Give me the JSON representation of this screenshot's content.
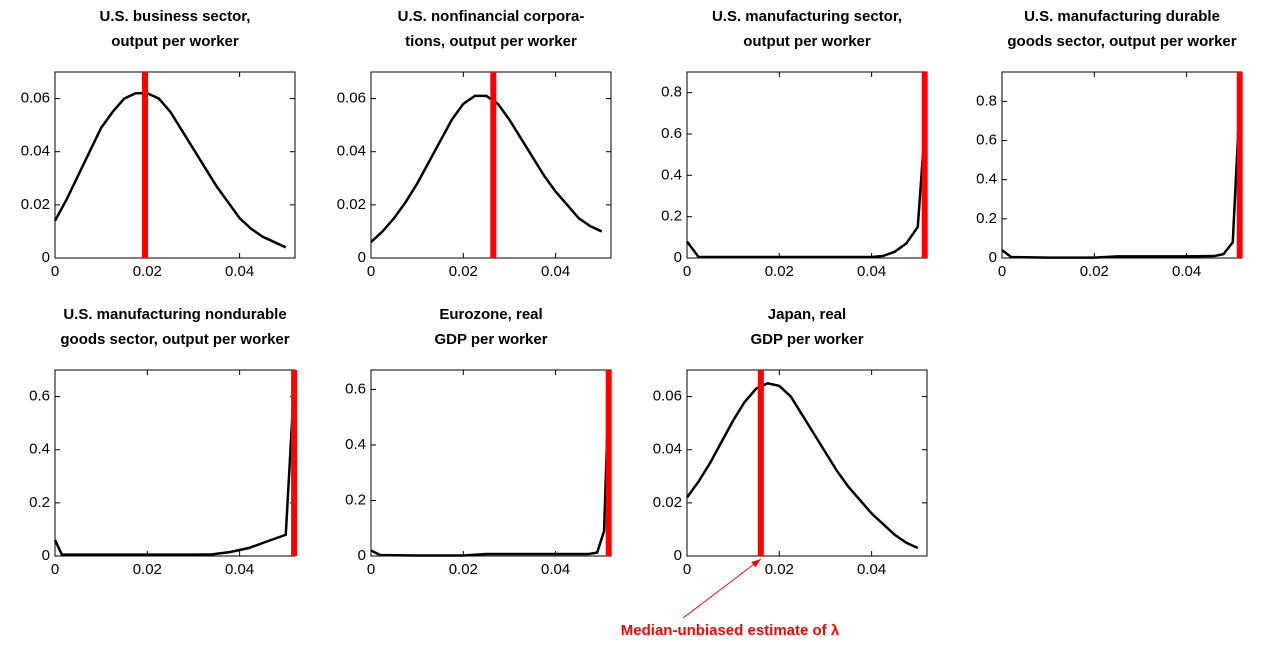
{
  "chart_data": [
    {
      "type": "line",
      "title": [
        "U.S. business sector,",
        "output per worker"
      ],
      "x": [
        0,
        0.0025,
        0.005,
        0.0075,
        0.01,
        0.0125,
        0.015,
        0.0175,
        0.02,
        0.0225,
        0.025,
        0.0275,
        0.03,
        0.0325,
        0.035,
        0.0375,
        0.04,
        0.0425,
        0.045,
        0.0475,
        0.05
      ],
      "values": [
        0.014,
        0.022,
        0.031,
        0.04,
        0.049,
        0.055,
        0.06,
        0.062,
        0.062,
        0.06,
        0.055,
        0.048,
        0.041,
        0.034,
        0.027,
        0.021,
        0.015,
        0.011,
        0.008,
        0.006,
        0.004
      ],
      "color": "#000000",
      "estimate_x": 0.0195,
      "estimate_color": "#ff0000",
      "xlim": [
        0,
        0.052
      ],
      "xticks": [
        0,
        0.02,
        0.04
      ],
      "ylim": [
        0,
        0.07
      ],
      "yticks": [
        0,
        0.02,
        0.04,
        0.06
      ]
    },
    {
      "type": "line",
      "title": [
        "U.S. nonfinancial corpora-",
        "tions, output per worker"
      ],
      "x": [
        0,
        0.0025,
        0.005,
        0.0075,
        0.01,
        0.0125,
        0.015,
        0.0175,
        0.02,
        0.0225,
        0.025,
        0.0275,
        0.03,
        0.0325,
        0.035,
        0.0375,
        0.04,
        0.0425,
        0.045,
        0.0475,
        0.05
      ],
      "values": [
        0.006,
        0.01,
        0.015,
        0.021,
        0.028,
        0.036,
        0.044,
        0.052,
        0.058,
        0.061,
        0.061,
        0.058,
        0.052,
        0.045,
        0.038,
        0.031,
        0.025,
        0.02,
        0.015,
        0.012,
        0.01
      ],
      "color": "#000000",
      "estimate_x": 0.0265,
      "estimate_color": "#ff0000",
      "xlim": [
        0,
        0.052
      ],
      "xticks": [
        0,
        0.02,
        0.04
      ],
      "ylim": [
        0,
        0.07
      ],
      "yticks": [
        0,
        0.02,
        0.04,
        0.06
      ]
    },
    {
      "type": "line",
      "title": [
        "U.S. manufacturing sector,",
        "output per worker"
      ],
      "x": [
        0,
        0.0025,
        0.01,
        0.02,
        0.03,
        0.04,
        0.0425,
        0.045,
        0.0475,
        0.05,
        0.0515
      ],
      "values": [
        0.08,
        0.005,
        0.005,
        0.005,
        0.005,
        0.005,
        0.01,
        0.03,
        0.07,
        0.15,
        0.62
      ],
      "color": "#000000",
      "estimate_x": 0.0515,
      "estimate_color": "#ff0000",
      "xlim": [
        0,
        0.052
      ],
      "xticks": [
        0,
        0.02,
        0.04
      ],
      "ylim": [
        0,
        0.9
      ],
      "yticks": [
        0,
        0.2,
        0.4,
        0.6,
        0.8
      ]
    },
    {
      "type": "line",
      "title": [
        "U.S. manufacturing durable",
        "goods sector, output per worker"
      ],
      "x": [
        0,
        0.002,
        0.01,
        0.02,
        0.025,
        0.04,
        0.046,
        0.048,
        0.05,
        0.0515
      ],
      "values": [
        0.04,
        0.005,
        0.002,
        0.002,
        0.008,
        0.008,
        0.01,
        0.02,
        0.08,
        0.8
      ],
      "color": "#000000",
      "estimate_x": 0.0515,
      "estimate_color": "#ff0000",
      "xlim": [
        0,
        0.052
      ],
      "xticks": [
        0,
        0.02,
        0.04
      ],
      "ylim": [
        0,
        0.95
      ],
      "yticks": [
        0,
        0.2,
        0.4,
        0.6,
        0.8
      ]
    },
    {
      "type": "line",
      "title": [
        "U.S. manufacturing nondurable",
        "goods sector, output per worker"
      ],
      "x": [
        0,
        0.0015,
        0.01,
        0.02,
        0.03,
        0.034,
        0.038,
        0.042,
        0.046,
        0.05,
        0.0515
      ],
      "values": [
        0.06,
        0.005,
        0.005,
        0.005,
        0.005,
        0.006,
        0.015,
        0.03,
        0.055,
        0.08,
        0.55
      ],
      "color": "#000000",
      "estimate_x": 0.0518,
      "estimate_color": "#ff0000",
      "xlim": [
        0,
        0.052
      ],
      "xticks": [
        0,
        0.02,
        0.04
      ],
      "ylim": [
        0,
        0.7
      ],
      "yticks": [
        0,
        0.2,
        0.4,
        0.6
      ]
    },
    {
      "type": "line",
      "title": [
        "Eurozone, real",
        "GDP per worker"
      ],
      "x": [
        0,
        0.002,
        0.01,
        0.02,
        0.025,
        0.04,
        0.047,
        0.049,
        0.0505,
        0.0515
      ],
      "values": [
        0.02,
        0.003,
        0.002,
        0.002,
        0.007,
        0.007,
        0.007,
        0.012,
        0.09,
        0.6
      ],
      "color": "#000000",
      "estimate_x": 0.0515,
      "estimate_color": "#ff0000",
      "xlim": [
        0,
        0.052
      ],
      "xticks": [
        0,
        0.02,
        0.04
      ],
      "ylim": [
        0,
        0.67
      ],
      "yticks": [
        0,
        0.2,
        0.4,
        0.6
      ]
    },
    {
      "type": "line",
      "title": [
        "Japan, real",
        "GDP per worker"
      ],
      "x": [
        0,
        0.0025,
        0.005,
        0.0075,
        0.01,
        0.0125,
        0.015,
        0.0175,
        0.02,
        0.0225,
        0.025,
        0.0275,
        0.03,
        0.0325,
        0.035,
        0.0375,
        0.04,
        0.0425,
        0.045,
        0.0475,
        0.05
      ],
      "values": [
        0.022,
        0.028,
        0.035,
        0.043,
        0.051,
        0.058,
        0.063,
        0.065,
        0.064,
        0.06,
        0.053,
        0.046,
        0.039,
        0.032,
        0.026,
        0.021,
        0.016,
        0.012,
        0.008,
        0.005,
        0.003
      ],
      "color": "#000000",
      "estimate_x": 0.016,
      "estimate_color": "#ff0000",
      "xlim": [
        0,
        0.052
      ],
      "xticks": [
        0,
        0.02,
        0.04
      ],
      "ylim": [
        0,
        0.07
      ],
      "yticks": [
        0,
        0.02,
        0.04,
        0.06
      ]
    }
  ],
  "annotation": {
    "text": "Median-unbiased estimate of λ",
    "color": "#ff0000"
  }
}
